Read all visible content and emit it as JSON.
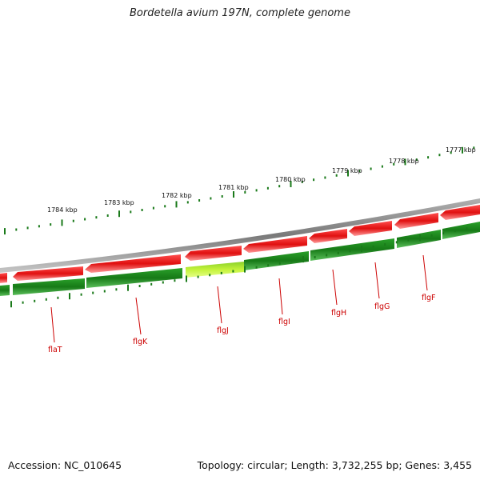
{
  "title": "Bordetella avium 197N, complete genome",
  "footer": {
    "accession": "Accession: NC_010645",
    "summary": "Topology: circular; Length: 3,732,255 bp; Genes: 3,455"
  },
  "scale_labels": [
    "1784 kbp",
    "1783 kbp",
    "1782 kbp",
    "1781 kbp",
    "1780 kbp",
    "1779 kbp",
    "1778 kbp",
    "1777 kbp"
  ],
  "gene_labels": [
    "flaT",
    "flgK",
    "flgJ",
    "flgI",
    "flgH",
    "flgG",
    "flgF"
  ],
  "colors": {
    "backbone": "#8a8a8a",
    "forward_gene": "#ee1111",
    "reverse_gene": "#1f8a1f",
    "highlight_gene": "#b7f02a",
    "label_red": "#cc0000",
    "tick_green": "#1a7a1a"
  }
}
